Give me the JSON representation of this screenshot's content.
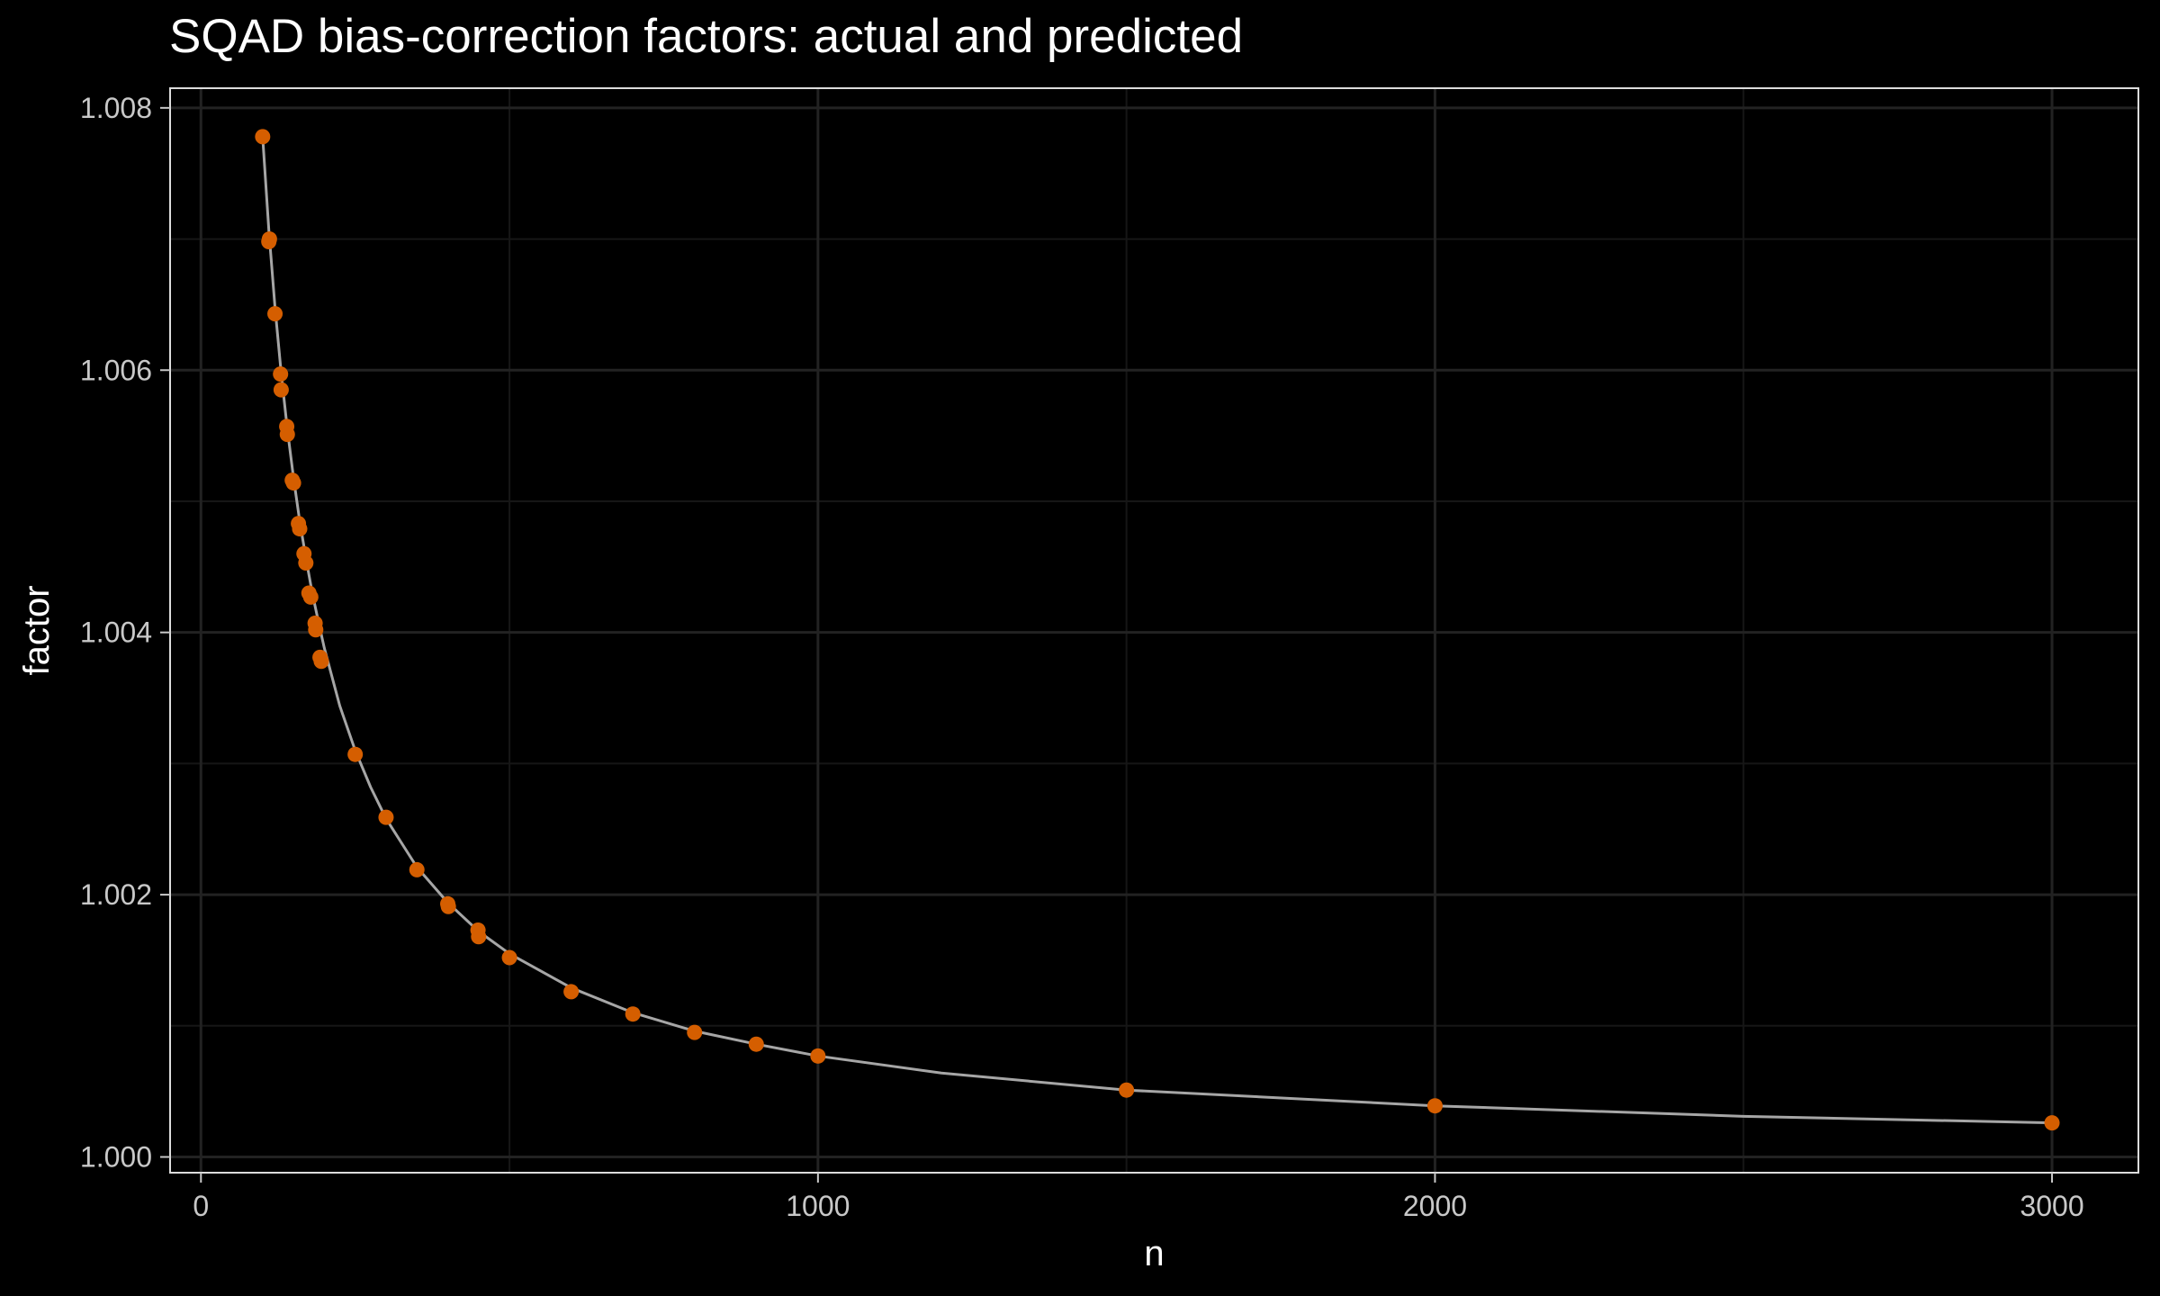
{
  "chart_data": {
    "type": "scatter",
    "title": "SQAD bias-correction factors: actual and predicted",
    "xlabel": "n",
    "ylabel": "factor",
    "xlim": [
      -50,
      3140
    ],
    "ylim": [
      0.99988,
      1.00815
    ],
    "x_ticks": [
      0,
      1000,
      2000,
      3000
    ],
    "x_tick_labels": [
      "0",
      "1000",
      "2000",
      "3000"
    ],
    "y_ticks": [
      1.0,
      1.002,
      1.004,
      1.006,
      1.008
    ],
    "y_tick_labels": [
      "1.000",
      "1.002",
      "1.004",
      "1.006",
      "1.008"
    ],
    "grid": true,
    "legend": "none",
    "series": [
      {
        "kind": "points",
        "color": "#d55e00",
        "x": [
          100,
          110,
          111,
          120,
          129,
          130,
          139,
          140,
          148,
          150,
          158,
          160,
          167,
          170,
          175,
          178,
          185,
          186,
          193,
          195,
          250,
          300,
          350,
          400,
          401,
          449,
          450,
          500,
          600,
          700,
          800,
          900,
          1000,
          1500,
          2000,
          3000
        ],
        "y": [
          1.00778,
          1.00698,
          1.007,
          1.00643,
          1.00597,
          1.00585,
          1.00557,
          1.00551,
          1.00516,
          1.00514,
          1.00483,
          1.00479,
          1.0046,
          1.00453,
          1.0043,
          1.00427,
          1.00407,
          1.00402,
          1.00381,
          1.00378,
          1.00307,
          1.00259,
          1.00219,
          1.00193,
          1.00191,
          1.00173,
          1.00168,
          1.00152,
          1.00126,
          1.00109,
          1.00095,
          1.00086,
          1.00077,
          1.00051,
          1.00039,
          1.00026
        ]
      },
      {
        "kind": "curve",
        "color": "#a6a6a6",
        "x": [
          100,
          110,
          120,
          130,
          140,
          150,
          160,
          170,
          180,
          190,
          200,
          225,
          250,
          275,
          300,
          350,
          400,
          450,
          500,
          600,
          700,
          800,
          900,
          1000,
          1200,
          1500,
          2000,
          2500,
          3000
        ],
        "y": [
          1.00778,
          1.00707,
          1.00648,
          1.00598,
          1.00555,
          1.00518,
          1.00485,
          1.00457,
          1.00431,
          1.00409,
          1.00388,
          1.00344,
          1.0031,
          1.00282,
          1.00258,
          1.00221,
          1.00194,
          1.00172,
          1.00155,
          1.00129,
          1.0011,
          1.00096,
          1.00086,
          1.00077,
          1.00064,
          1.00051,
          1.00039,
          1.00031,
          1.00026
        ]
      }
    ]
  }
}
